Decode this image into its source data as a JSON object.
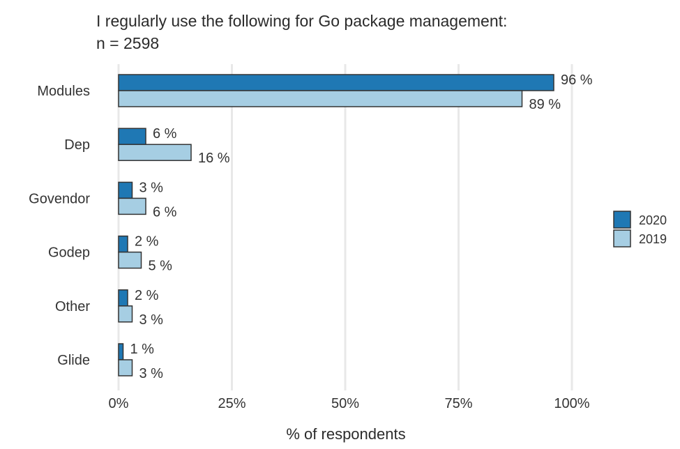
{
  "chart_data": {
    "type": "bar",
    "orientation": "horizontal",
    "title": "I regularly use the following for Go package management:",
    "subtitle": "n = 2598",
    "categories": [
      "Modules",
      "Dep",
      "Govendor",
      "Godep",
      "Other",
      "Glide"
    ],
    "series": [
      {
        "name": "2020",
        "color": "#1f78b4",
        "values": [
          96,
          6,
          3,
          2,
          2,
          1
        ],
        "labels": [
          "96 %",
          "6 %",
          "3 %",
          "2 %",
          "2 %",
          "1 %"
        ]
      },
      {
        "name": "2019",
        "color": "#a6cee3",
        "values": [
          89,
          16,
          6,
          5,
          3,
          3
        ],
        "labels": [
          "89 %",
          "16 %",
          "6 %",
          "5 %",
          "3 %",
          "3 %"
        ]
      }
    ],
    "xlabel": "% of respondents",
    "ylabel": "",
    "xlim": [
      0,
      100
    ],
    "x_ticks": [
      0,
      25,
      50,
      75,
      100
    ],
    "x_tick_labels": [
      "0%",
      "25%",
      "50%",
      "75%",
      "100%"
    ],
    "grid": true,
    "legend_position": "right"
  }
}
